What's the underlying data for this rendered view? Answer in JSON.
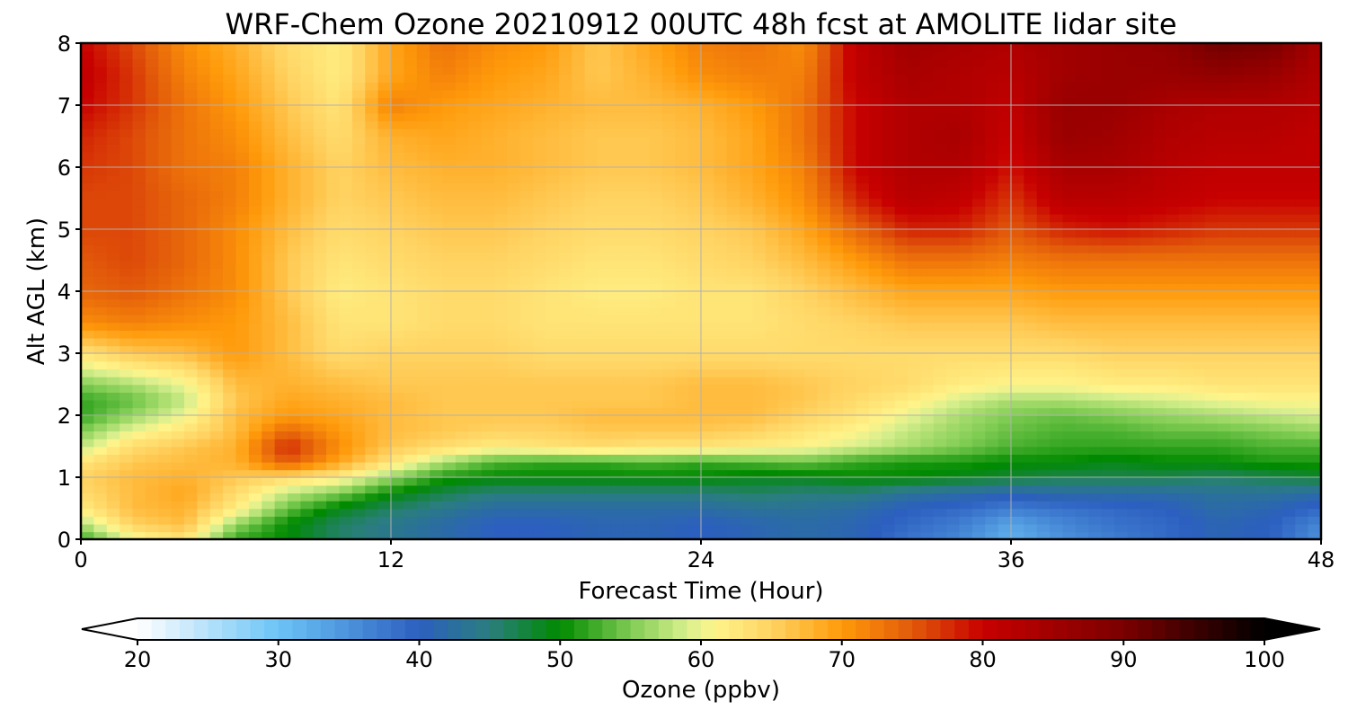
{
  "chart_data": {
    "type": "heatmap",
    "title": "WRF-Chem Ozone  20210912 00UTC 48h fcst at AMOLITE lidar site",
    "xlabel": "Forecast Time (Hour)",
    "ylabel": "Alt AGL (km)",
    "xlim": [
      0,
      48
    ],
    "ylim": [
      0,
      8
    ],
    "xticks": [
      "0",
      "12",
      "24",
      "36",
      "48"
    ],
    "yticks": [
      "0",
      "1",
      "2",
      "3",
      "4",
      "5",
      "6",
      "7",
      "8"
    ],
    "grid": true,
    "x": [
      0,
      2,
      4,
      6,
      8,
      10,
      12,
      14,
      16,
      18,
      20,
      22,
      24,
      26,
      28,
      30,
      32,
      34,
      36,
      38,
      40,
      42,
      44,
      46,
      48
    ],
    "y": [
      0.0,
      0.25,
      0.5,
      0.75,
      1.0,
      1.25,
      1.5,
      1.75,
      2.0,
      2.25,
      2.5,
      3.0,
      3.5,
      4.0,
      4.5,
      5.0,
      5.5,
      6.0,
      6.5,
      7.0,
      7.5,
      8.0
    ],
    "z": [
      [
        52,
        60,
        63,
        52,
        50,
        46,
        44,
        42,
        40,
        40,
        41,
        41,
        40,
        41,
        42,
        41,
        38,
        36,
        32,
        35,
        37,
        39,
        41,
        40,
        35
      ],
      [
        57,
        65,
        67,
        56,
        50,
        46,
        44,
        42,
        40,
        40,
        41,
        41,
        40,
        41,
        42,
        41,
        39,
        37,
        33,
        36,
        38,
        39,
        41,
        40,
        36
      ],
      [
        62,
        67,
        68,
        62,
        54,
        49,
        46,
        44,
        42,
        42,
        42,
        42,
        42,
        43,
        43,
        42,
        40,
        39,
        37,
        38,
        39,
        40,
        42,
        41,
        39
      ],
      [
        64,
        67,
        69,
        64,
        58,
        55,
        50,
        47,
        45,
        45,
        45,
        45,
        45,
        46,
        45,
        45,
        43,
        42,
        41,
        42,
        42,
        42,
        43,
        43,
        42
      ],
      [
        65,
        67,
        68,
        66,
        64,
        62,
        56,
        51,
        50,
        50,
        50,
        50,
        50,
        49,
        49,
        50,
        50,
        49,
        48,
        47,
        47,
        47,
        46,
        47,
        48
      ],
      [
        63,
        66,
        67,
        68,
        75,
        69,
        63,
        57,
        53,
        52,
        52,
        53,
        52,
        53,
        54,
        52,
        51,
        51,
        50,
        50,
        49,
        50,
        50,
        51,
        51
      ],
      [
        58,
        64,
        66,
        68,
        78,
        71,
        66,
        64,
        62,
        63,
        64,
        63,
        63,
        62,
        61,
        59,
        57,
        55,
        53,
        52,
        52,
        52,
        52,
        53,
        53
      ],
      [
        55,
        60,
        63,
        67,
        74,
        70,
        67,
        66,
        65,
        65,
        66,
        66,
        66,
        65,
        63,
        61,
        58,
        56,
        54,
        53,
        53,
        54,
        54,
        55,
        56
      ],
      [
        52,
        56,
        60,
        67,
        70,
        69,
        67,
        66,
        66,
        66,
        67,
        67,
        67,
        67,
        65,
        63,
        60,
        57,
        55,
        54,
        55,
        56,
        57,
        58,
        59
      ],
      [
        52,
        54,
        58,
        66,
        69,
        68,
        67,
        66,
        66,
        66,
        66,
        66,
        67,
        67,
        66,
        64,
        62,
        59,
        57,
        57,
        58,
        59,
        60,
        61,
        61
      ],
      [
        55,
        57,
        60,
        67,
        68,
        67,
        66,
        66,
        66,
        66,
        66,
        66,
        67,
        67,
        66,
        65,
        64,
        62,
        61,
        61,
        62,
        62,
        63,
        63,
        63
      ],
      [
        63,
        66,
        67,
        70,
        67,
        64,
        65,
        65,
        65,
        64,
        64,
        64,
        64,
        64,
        64,
        64,
        64,
        64,
        64,
        64,
        65,
        65,
        65,
        65,
        65
      ],
      [
        71,
        72,
        71,
        70,
        67,
        63,
        63,
        64,
        64,
        63,
        63,
        63,
        63,
        63,
        64,
        65,
        66,
        66,
        66,
        67,
        67,
        67,
        67,
        67,
        67
      ],
      [
        74,
        75,
        73,
        71,
        66,
        62,
        63,
        64,
        64,
        63,
        62,
        62,
        63,
        63,
        65,
        67,
        69,
        69,
        69,
        70,
        70,
        70,
        70,
        70,
        70
      ],
      [
        75,
        76,
        74,
        71,
        66,
        63,
        64,
        65,
        65,
        64,
        63,
        63,
        64,
        65,
        67,
        70,
        73,
        73,
        72,
        73,
        73,
        73,
        73,
        73,
        73
      ],
      [
        76,
        76,
        74,
        71,
        67,
        64,
        65,
        66,
        66,
        65,
        64,
        64,
        65,
        66,
        69,
        74,
        78,
        78,
        75,
        78,
        79,
        78,
        77,
        77,
        77
      ],
      [
        76,
        76,
        74,
        72,
        68,
        65,
        66,
        67,
        67,
        66,
        65,
        65,
        66,
        68,
        71,
        78,
        82,
        81,
        77,
        82,
        82,
        81,
        80,
        80,
        80
      ],
      [
        77,
        76,
        73,
        72,
        68,
        65,
        67,
        68,
        68,
        67,
        66,
        66,
        67,
        69,
        72,
        80,
        83,
        83,
        79,
        84,
        84,
        82,
        81,
        81,
        81
      ],
      [
        78,
        76,
        73,
        71,
        67,
        64,
        68,
        69,
        68,
        67,
        66,
        66,
        67,
        69,
        73,
        80,
        83,
        84,
        80,
        86,
        85,
        83,
        82,
        82,
        81
      ],
      [
        80,
        77,
        73,
        70,
        66,
        63,
        72,
        70,
        69,
        68,
        67,
        67,
        68,
        70,
        73,
        80,
        83,
        83,
        81,
        86,
        86,
        84,
        83,
        83,
        82
      ],
      [
        81,
        77,
        72,
        69,
        65,
        62,
        69,
        72,
        70,
        69,
        66,
        68,
        71,
        72,
        72,
        81,
        84,
        83,
        82,
        85,
        86,
        86,
        87,
        86,
        83
      ],
      [
        80,
        76,
        71,
        68,
        64,
        62,
        69,
        73,
        71,
        70,
        66,
        69,
        72,
        73,
        71,
        81,
        85,
        84,
        83,
        85,
        86,
        87,
        91,
        90,
        84
      ]
    ],
    "colorbar": {
      "label": "Ozone  (ppbv)",
      "min": 20,
      "max": 100,
      "ticks": [
        "20",
        "30",
        "40",
        "50",
        "60",
        "70",
        "80",
        "90",
        "100"
      ],
      "extend": "both",
      "stops": [
        [
          20,
          "#ffffff"
        ],
        [
          30,
          "#6cc4f6"
        ],
        [
          40,
          "#2c5fc0"
        ],
        [
          45,
          "#2a7e7e"
        ],
        [
          50,
          "#008a00"
        ],
        [
          55,
          "#7fcc52"
        ],
        [
          59,
          "#d8ef8e"
        ],
        [
          61,
          "#fff48a"
        ],
        [
          65,
          "#ffd362"
        ],
        [
          70,
          "#ff9a0a"
        ],
        [
          75,
          "#e25a0a"
        ],
        [
          80,
          "#c80000"
        ],
        [
          90,
          "#7a0000"
        ],
        [
          100,
          "#000000"
        ]
      ]
    }
  }
}
